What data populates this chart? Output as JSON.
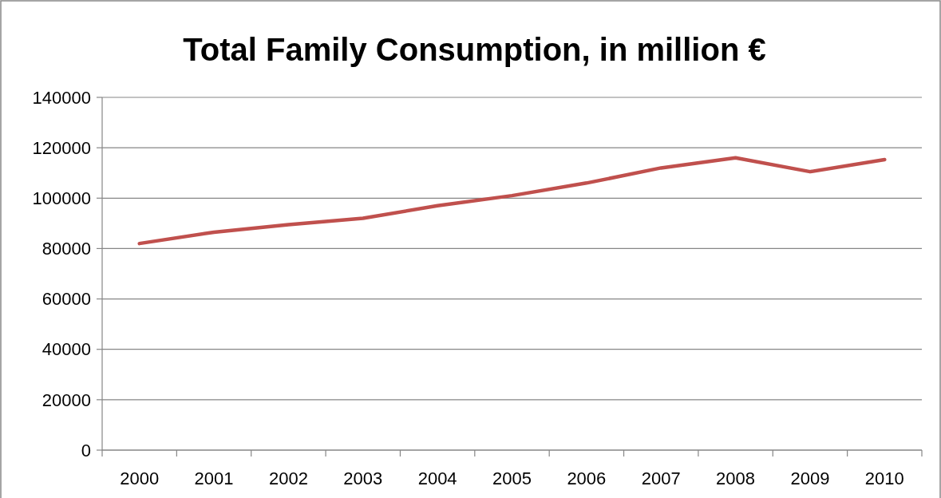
{
  "chart_data": {
    "type": "line",
    "title": "Total Family Consumption, in million €",
    "categories": [
      "2000",
      "2001",
      "2002",
      "2003",
      "2004",
      "2005",
      "2006",
      "2007",
      "2008",
      "2009",
      "2010"
    ],
    "series": [
      {
        "color": "#c0504d",
        "values": [
          82000,
          86500,
          89500,
          92000,
          97000,
          101000,
          106000,
          112000,
          116000,
          110500,
          115300
        ]
      }
    ],
    "ylim": [
      0,
      140000
    ],
    "yticks": [
      0,
      20000,
      40000,
      60000,
      80000,
      100000,
      120000,
      140000
    ],
    "grid": "y",
    "marker": "none",
    "line_style": "solid"
  }
}
